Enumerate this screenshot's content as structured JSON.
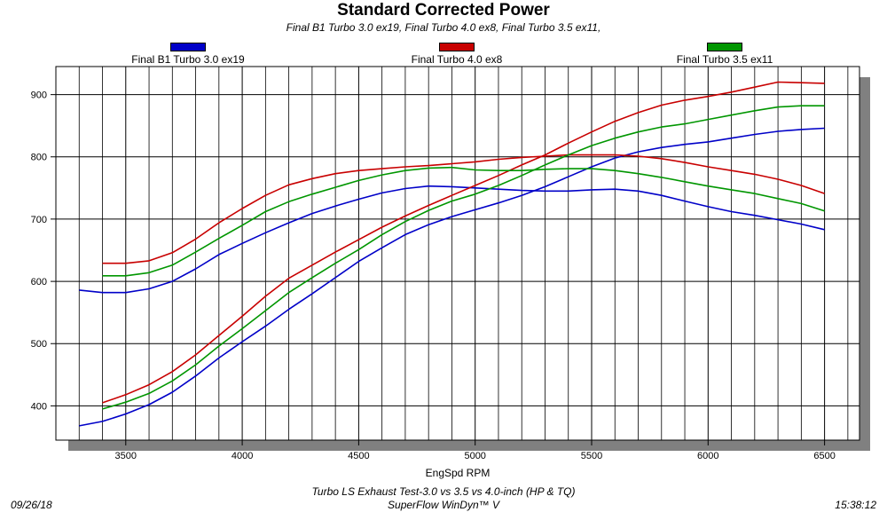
{
  "header": {
    "title": "Standard Corrected Power",
    "subtitle": "Final B1 Turbo 3.0 ex19, Final Turbo 4.0 ex8, Final Turbo 3.5 ex11,"
  },
  "legend": [
    {
      "label": "Final B1 Turbo 3.0 ex19",
      "color": "#0000c8"
    },
    {
      "label": "Final Turbo 4.0 ex8",
      "color": "#c80000"
    },
    {
      "label": "Final Turbo 3.5 ex11",
      "color": "#009600"
    }
  ],
  "footer": {
    "test_name": "Turbo LS Exhaust Test-3.0 vs 3.5 vs 4.0-inch (HP & TQ)",
    "software": "SuperFlow WinDyn™ V",
    "date": "09/26/18",
    "time": "15:38:12"
  },
  "chart_data": {
    "type": "line",
    "title": "Standard Corrected Power",
    "xlabel": "EngSpd RPM",
    "ylabel": "",
    "xlim": [
      3200,
      6650
    ],
    "ylim": [
      345,
      945
    ],
    "x_ticks": [
      3500,
      4000,
      4500,
      5000,
      5500,
      6000,
      6500
    ],
    "y_ticks": [
      400,
      500,
      600,
      700,
      800,
      900
    ],
    "grid": true,
    "legend_position": "top",
    "series": [
      {
        "name": "Final B1 Turbo 3.0 ex19",
        "metric": "power",
        "color": "#0000c8",
        "x": [
          3300,
          3400,
          3500,
          3600,
          3700,
          3800,
          3900,
          4000,
          4100,
          4200,
          4300,
          4400,
          4500,
          4600,
          4700,
          4800,
          4900,
          5000,
          5100,
          5200,
          5300,
          5400,
          5500,
          5600,
          5700,
          5800,
          5900,
          6000,
          6100,
          6200,
          6300,
          6400,
          6500
        ],
        "y": [
          368,
          375,
          387,
          402,
          422,
          448,
          477,
          503,
          528,
          555,
          580,
          606,
          632,
          654,
          675,
          691,
          704,
          715,
          726,
          738,
          752,
          768,
          784,
          798,
          808,
          815,
          820,
          824,
          830,
          836,
          841,
          844,
          846
        ]
      },
      {
        "name": "Final B1 Turbo 3.0 ex19",
        "metric": "torque",
        "color": "#0000c8",
        "x": [
          3300,
          3400,
          3500,
          3600,
          3700,
          3800,
          3900,
          4000,
          4100,
          4200,
          4300,
          4400,
          4500,
          4600,
          4700,
          4800,
          4900,
          5000,
          5100,
          5200,
          5300,
          5400,
          5500,
          5600,
          5700,
          5800,
          5900,
          6000,
          6100,
          6200,
          6300,
          6400,
          6500
        ],
        "y": [
          586,
          582,
          582,
          588,
          600,
          620,
          643,
          661,
          678,
          694,
          709,
          721,
          732,
          742,
          749,
          753,
          752,
          750,
          748,
          746,
          745,
          745,
          747,
          748,
          745,
          738,
          729,
          720,
          712,
          706,
          699,
          692,
          683
        ]
      },
      {
        "name": "Final Turbo 4.0 ex8",
        "metric": "power",
        "color": "#c80000",
        "x": [
          3400,
          3500,
          3600,
          3700,
          3800,
          3900,
          4000,
          4100,
          4200,
          4300,
          4400,
          4500,
          4600,
          4700,
          4800,
          4900,
          5000,
          5100,
          5200,
          5300,
          5400,
          5500,
          5600,
          5700,
          5800,
          5900,
          6000,
          6100,
          6200,
          6300,
          6400,
          6500
        ],
        "y": [
          405,
          418,
          434,
          455,
          482,
          513,
          544,
          576,
          605,
          626,
          647,
          667,
          687,
          705,
          722,
          738,
          754,
          770,
          787,
          803,
          822,
          840,
          857,
          871,
          883,
          891,
          897,
          904,
          912,
          920,
          919,
          918
        ]
      },
      {
        "name": "Final Turbo 4.0 ex8",
        "metric": "torque",
        "color": "#c80000",
        "x": [
          3400,
          3500,
          3600,
          3700,
          3800,
          3900,
          4000,
          4100,
          4200,
          4300,
          4400,
          4500,
          4600,
          4700,
          4800,
          4900,
          5000,
          5100,
          5200,
          5300,
          5400,
          5500,
          5600,
          5700,
          5800,
          5900,
          6000,
          6100,
          6200,
          6300,
          6400,
          6500
        ],
        "y": [
          629,
          629,
          633,
          646,
          668,
          694,
          717,
          738,
          755,
          765,
          773,
          778,
          781,
          784,
          786,
          789,
          792,
          796,
          799,
          801,
          803,
          803,
          803,
          801,
          797,
          791,
          784,
          778,
          772,
          764,
          754,
          741
        ]
      },
      {
        "name": "Final Turbo 3.5 ex11",
        "metric": "power",
        "color": "#009600",
        "x": [
          3400,
          3500,
          3600,
          3700,
          3800,
          3900,
          4000,
          4100,
          4200,
          4300,
          4400,
          4500,
          4600,
          4700,
          4800,
          4900,
          5000,
          5100,
          5200,
          5300,
          5400,
          5500,
          5600,
          5700,
          5800,
          5900,
          6000,
          6100,
          6200,
          6300,
          6400,
          6500
        ],
        "y": [
          395,
          406,
          420,
          440,
          466,
          496,
          524,
          553,
          582,
          606,
          629,
          651,
          675,
          696,
          714,
          729,
          740,
          754,
          770,
          787,
          803,
          818,
          830,
          840,
          848,
          853,
          860,
          867,
          874,
          880,
          882,
          882
        ]
      },
      {
        "name": "Final Turbo 3.5 ex11",
        "metric": "torque",
        "color": "#009600",
        "x": [
          3400,
          3500,
          3600,
          3700,
          3800,
          3900,
          4000,
          4100,
          4200,
          4300,
          4400,
          4500,
          4600,
          4700,
          4800,
          4900,
          5000,
          5100,
          5200,
          5300,
          5400,
          5500,
          5600,
          5700,
          5800,
          5900,
          6000,
          6100,
          6200,
          6300,
          6400,
          6500
        ],
        "y": [
          609,
          609,
          614,
          626,
          647,
          669,
          690,
          712,
          728,
          740,
          751,
          762,
          771,
          778,
          782,
          783,
          779,
          778,
          778,
          780,
          781,
          781,
          778,
          773,
          767,
          760,
          753,
          747,
          741,
          733,
          725,
          713
        ]
      }
    ]
  }
}
